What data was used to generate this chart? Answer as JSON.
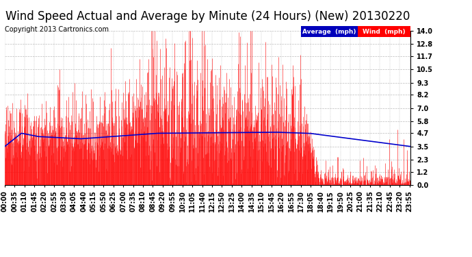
{
  "title": "Wind Speed Actual and Average by Minute (24 Hours) (New) 20130220",
  "copyright": "Copyright 2013 Cartronics.com",
  "yticks": [
    0.0,
    1.2,
    2.3,
    3.5,
    4.7,
    5.8,
    7.0,
    8.2,
    9.3,
    10.5,
    11.7,
    12.8,
    14.0
  ],
  "ymin": 0.0,
  "ymax": 14.0,
  "bg_color": "#ffffff",
  "plot_bg_color": "#ffffff",
  "grid_color": "#bbbbbb",
  "bar_color": "#ff0000",
  "avg_color": "#0000cc",
  "title_fontsize": 12,
  "copyright_fontsize": 7,
  "legend_avg_color": "#0000bb",
  "legend_wind_color": "#ff0000",
  "legend_text_color": "#ffffff",
  "tick_label_fontsize": 7
}
